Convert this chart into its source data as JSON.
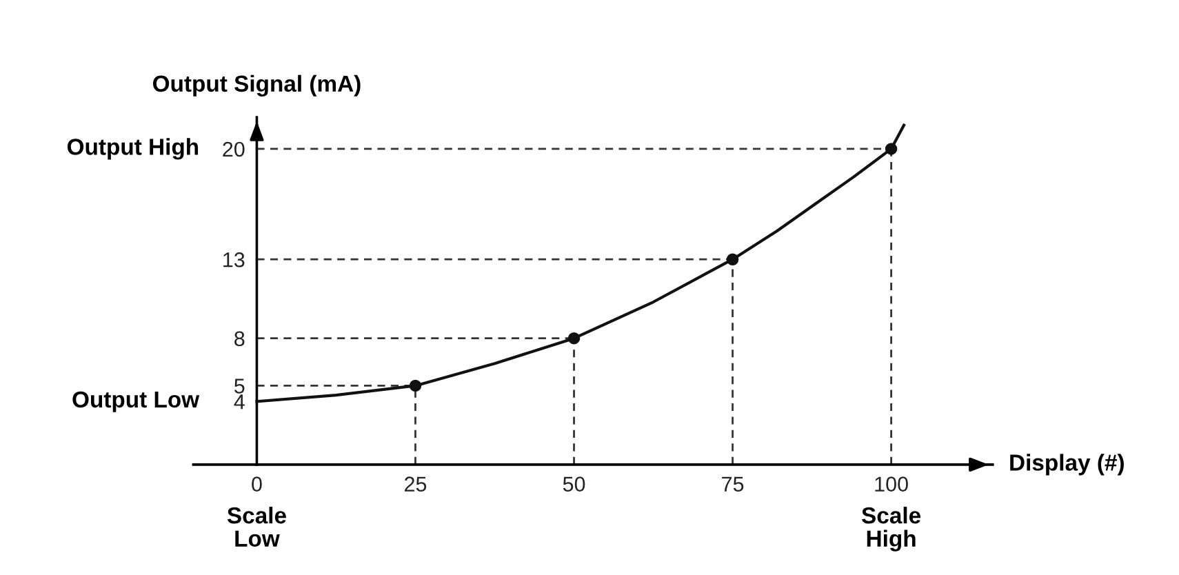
{
  "chart_data": {
    "type": "line",
    "xlabel": "Display (#)",
    "ylabel": "Output Signal (mA)",
    "xlim": [
      -10,
      116
    ],
    "ylim": [
      0,
      22
    ],
    "xticks": [
      0,
      25,
      50,
      75,
      100
    ],
    "yticks": [
      4,
      5,
      8,
      13,
      20
    ],
    "grid": false,
    "legend": false,
    "series": [
      {
        "type": "line",
        "color": "#111111",
        "marker": "none",
        "line_style": "solid",
        "x": [
          0,
          12.5,
          25,
          37.5,
          50,
          62.5,
          75,
          82,
          88,
          94,
          100,
          102
        ],
        "values": [
          4,
          4.4,
          5,
          6.4,
          8,
          10.3,
          13,
          14.8,
          16.5,
          18.2,
          20,
          21.5
        ]
      },
      {
        "type": "scatter",
        "color": "#111111",
        "marker": "circle",
        "x": [
          25,
          50,
          75,
          100
        ],
        "values": [
          5,
          8,
          13,
          20
        ]
      }
    ],
    "ref_lines": [
      {
        "axis": "y",
        "value": 5,
        "color": "#333333",
        "line_style": "dashed"
      },
      {
        "axis": "y",
        "value": 8,
        "color": "#333333",
        "line_style": "dashed"
      },
      {
        "axis": "y",
        "value": 13,
        "color": "#333333",
        "line_style": "dashed"
      },
      {
        "axis": "y",
        "value": 20,
        "color": "#333333",
        "line_style": "dashed"
      },
      {
        "axis": "x",
        "value": 25,
        "color": "#333333",
        "line_style": "dashed"
      },
      {
        "axis": "x",
        "value": 50,
        "color": "#333333",
        "line_style": "dashed"
      },
      {
        "axis": "x",
        "value": 75,
        "color": "#333333",
        "line_style": "dashed"
      },
      {
        "axis": "x",
        "value": 100,
        "color": "#333333",
        "line_style": "dashed"
      }
    ],
    "annotations": [
      "Output High",
      "Output Low",
      "Scale\nLow",
      "Scale\nHigh"
    ]
  }
}
